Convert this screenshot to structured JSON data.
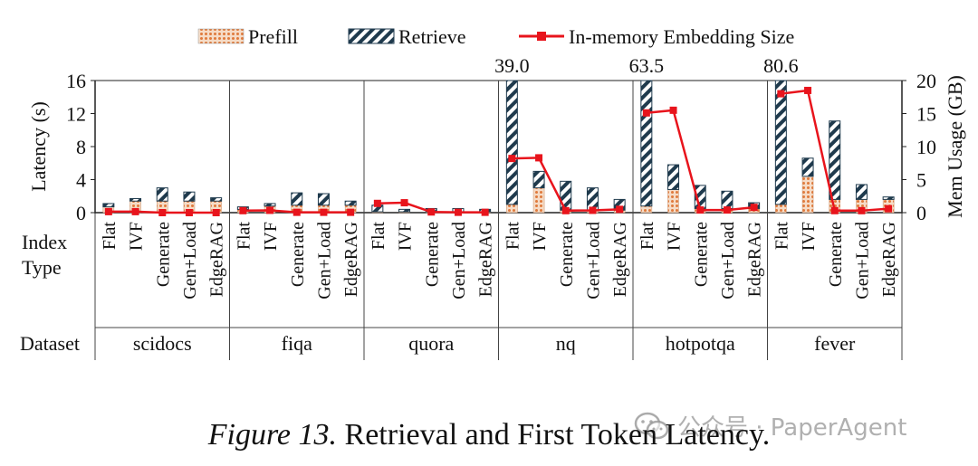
{
  "chart_data": {
    "type": "bar",
    "legend": {
      "placement": "top",
      "entries": [
        "Prefill",
        "Retrieve",
        "In-memory Embedding Size"
      ]
    },
    "ylabel_left": "Latency (s)",
    "ylabel_right": "Mem Usage (GB)",
    "ylim_left": [
      0,
      16
    ],
    "ylim_right": [
      0,
      20
    ],
    "yticks_left": [
      "0",
      "4",
      "8",
      "12",
      "16"
    ],
    "yticks_right": [
      "0",
      "5",
      "10",
      "15",
      "20"
    ],
    "row_label_index": "Index Type",
    "row_label_index_lines": [
      "Index",
      "Type"
    ],
    "row_label_dataset": "Dataset",
    "index_types": [
      "Flat",
      "IVF",
      "Generate",
      "Gen+Load",
      "EdgeRAG"
    ],
    "datasets": [
      {
        "name": "scidocs",
        "prefill": [
          0.7,
          1.4,
          1.4,
          1.4,
          1.4
        ],
        "retrieve": [
          0.4,
          0.3,
          1.6,
          1.1,
          0.4
        ],
        "mem": [
          0.15,
          0.15,
          0.0,
          0.0,
          0.0
        ]
      },
      {
        "name": "fiqa",
        "prefill": [
          0.4,
          0.8,
          0.9,
          0.9,
          0.9
        ],
        "retrieve": [
          0.3,
          0.3,
          1.5,
          1.4,
          0.5
        ],
        "mem": [
          0.3,
          0.35,
          0.05,
          0.05,
          0.05
        ]
      },
      {
        "name": "quora",
        "prefill": [
          0.1,
          0.1,
          0.1,
          0.1,
          0.1
        ],
        "retrieve": [
          0.8,
          0.3,
          0.4,
          0.4,
          0.3
        ],
        "mem": [
          1.4,
          1.5,
          0.1,
          0.05,
          0.05
        ]
      },
      {
        "name": "nq",
        "prefill": [
          1.0,
          3.0,
          0.3,
          0.3,
          0.3
        ],
        "retrieve": [
          38.0,
          2.0,
          3.5,
          2.7,
          1.3
        ],
        "mem": [
          8.2,
          8.3,
          0.3,
          0.35,
          0.5
        ],
        "total_label": "39.0",
        "total_label_bar": 0
      },
      {
        "name": "hotpotqa",
        "prefill": [
          0.8,
          2.8,
          0.5,
          0.5,
          0.5
        ],
        "retrieve": [
          62.7,
          3.0,
          2.8,
          2.1,
          0.7
        ],
        "mem": [
          15.1,
          15.5,
          0.4,
          0.4,
          0.8
        ],
        "total_label": "63.5",
        "total_label_bar": 0
      },
      {
        "name": "fever",
        "prefill": [
          1.0,
          4.4,
          1.6,
          1.6,
          1.6
        ],
        "retrieve": [
          79.6,
          2.2,
          9.5,
          1.8,
          0.3
        ],
        "mem": [
          18.0,
          18.5,
          0.3,
          0.3,
          0.6
        ],
        "total_label": "80.6",
        "total_label_bar": 0
      }
    ],
    "colors": {
      "prefill": "#e07a3c",
      "prefill_bg": "#f6dcc7",
      "retrieve": "#1f3a4d",
      "mem_line": "#e8141c",
      "axis": "#222222"
    }
  },
  "caption": {
    "figure_number": "Figure 13.",
    "text": "Retrieval and First Token Latency."
  },
  "watermark": {
    "text": "公众号 · PaperAgent",
    "icon": "wechat-icon"
  }
}
